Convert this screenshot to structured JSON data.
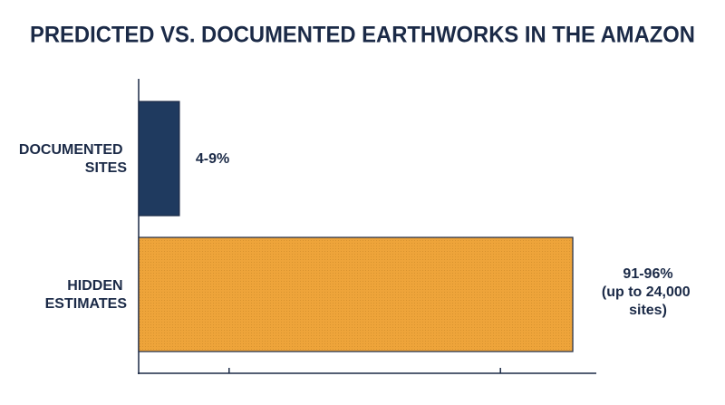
{
  "chart_data": {
    "type": "barh",
    "title": "PREDICTED VS. DOCUMENTED EARTHWORKS IN THE AMAZON",
    "categories": [
      "DOCUMENTED SITES",
      "HIDDEN ESTIMATES"
    ],
    "values": [
      9,
      96
    ],
    "value_labels": [
      "4-9%",
      "91-96%"
    ],
    "colors": [
      "#1f3a5f",
      "#eea43a"
    ],
    "annotation": "(up to 24,000 sites)",
    "xlim": [
      0,
      101
    ],
    "xticks": [
      20,
      80
    ]
  }
}
